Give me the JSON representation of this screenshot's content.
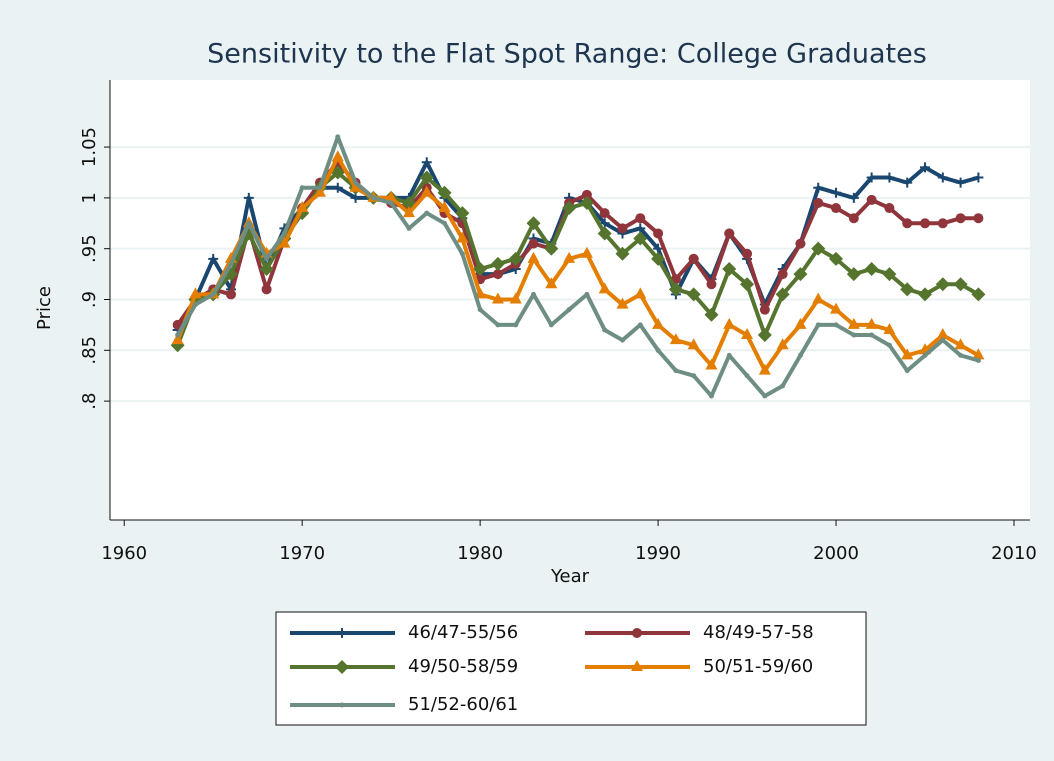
{
  "chart_data": {
    "type": "line",
    "title": "Sensitivity to the Flat Spot Range: College Graduates",
    "xlabel": "Year",
    "ylabel": "Price",
    "x": [
      1963,
      1964,
      1965,
      1966,
      1967,
      1968,
      1969,
      1970,
      1971,
      1972,
      1973,
      1974,
      1975,
      1976,
      1977,
      1978,
      1979,
      1980,
      1981,
      1982,
      1983,
      1984,
      1985,
      1986,
      1987,
      1988,
      1989,
      1990,
      1991,
      1992,
      1993,
      1994,
      1995,
      1996,
      1997,
      1998,
      1999,
      2000,
      2001,
      2002,
      2003,
      2004,
      2005,
      2006,
      2007,
      2008
    ],
    "xlim": [
      1959.2,
      2010.9
    ],
    "xticks": [
      1960,
      1970,
      1980,
      1990,
      2000,
      2010
    ],
    "ylim": [
      0.683,
      1.116
    ],
    "yticks": [
      {
        "value": 0.8,
        "label": ".8"
      },
      {
        "value": 0.85,
        "label": ".85"
      },
      {
        "value": 0.9,
        "label": ".9"
      },
      {
        "value": 0.95,
        "label": ".95"
      },
      1,
      1.05
    ],
    "grid": true,
    "legend": "bottom",
    "series": [
      {
        "name": "46/47-55/56",
        "color": "#1a476f",
        "marker": "plus",
        "values": [
          0.87,
          0.9,
          0.94,
          0.91,
          1.0,
          0.93,
          0.97,
          0.99,
          1.01,
          1.01,
          1.0,
          1.0,
          1.0,
          1.0,
          1.035,
          1.0,
          0.98,
          0.925,
          0.925,
          0.93,
          0.96,
          0.955,
          1.0,
          0.995,
          0.975,
          0.965,
          0.97,
          0.95,
          0.905,
          0.94,
          0.92,
          0.965,
          0.94,
          0.895,
          0.93,
          0.955,
          1.01,
          1.005,
          1.0,
          1.02,
          1.02,
          1.015,
          1.03,
          1.02,
          1.015,
          1.02
        ]
      },
      {
        "name": "48/49-57-58",
        "color": "#90353b",
        "marker": "circle",
        "values": [
          0.875,
          0.9,
          0.91,
          0.905,
          0.97,
          0.91,
          0.96,
          0.99,
          1.015,
          1.035,
          1.015,
          1.0,
          0.995,
          0.99,
          1.01,
          0.985,
          0.975,
          0.92,
          0.925,
          0.935,
          0.955,
          0.95,
          0.995,
          1.003,
          0.985,
          0.97,
          0.98,
          0.965,
          0.92,
          0.94,
          0.915,
          0.965,
          0.945,
          0.89,
          0.925,
          0.955,
          0.995,
          0.99,
          0.98,
          0.998,
          0.99,
          0.975,
          0.975,
          0.975,
          0.98,
          0.98
        ]
      },
      {
        "name": "49/50-58/59",
        "color": "#55752f",
        "marker": "diamond",
        "values": [
          0.855,
          0.9,
          0.905,
          0.925,
          0.965,
          0.93,
          0.96,
          0.985,
          1.01,
          1.025,
          1.01,
          1.0,
          1.0,
          0.995,
          1.02,
          1.005,
          0.985,
          0.93,
          0.935,
          0.94,
          0.975,
          0.95,
          0.99,
          0.995,
          0.965,
          0.945,
          0.96,
          0.94,
          0.91,
          0.905,
          0.885,
          0.93,
          0.915,
          0.865,
          0.905,
          0.925,
          0.95,
          0.94,
          0.925,
          0.93,
          0.925,
          0.91,
          0.905,
          0.915,
          0.915,
          0.905
        ]
      },
      {
        "name": "50/51-59/60",
        "color": "#e37e00",
        "marker": "triangle",
        "values": [
          0.86,
          0.905,
          0.905,
          0.94,
          0.975,
          0.945,
          0.955,
          0.99,
          1.005,
          1.04,
          1.01,
          1.0,
          1.0,
          0.985,
          1.005,
          0.99,
          0.96,
          0.905,
          0.9,
          0.9,
          0.94,
          0.915,
          0.94,
          0.945,
          0.91,
          0.895,
          0.905,
          0.875,
          0.86,
          0.855,
          0.835,
          0.875,
          0.865,
          0.83,
          0.855,
          0.875,
          0.9,
          0.89,
          0.875,
          0.875,
          0.87,
          0.845,
          0.85,
          0.865,
          0.855,
          0.845
        ]
      },
      {
        "name": "51/52-60/61",
        "color": "#6e8e84",
        "marker": "point",
        "values": [
          0.865,
          0.895,
          0.905,
          0.935,
          0.975,
          0.94,
          0.965,
          1.01,
          1.01,
          1.06,
          1.015,
          1.0,
          0.995,
          0.97,
          0.985,
          0.975,
          0.945,
          0.89,
          0.875,
          0.875,
          0.905,
          0.875,
          0.89,
          0.905,
          0.87,
          0.86,
          0.875,
          0.85,
          0.83,
          0.825,
          0.805,
          0.845,
          0.825,
          0.805,
          0.815,
          0.845,
          0.875,
          0.875,
          0.865,
          0.865,
          0.855,
          0.83,
          0.845,
          0.86,
          0.845,
          0.84
        ]
      }
    ]
  }
}
